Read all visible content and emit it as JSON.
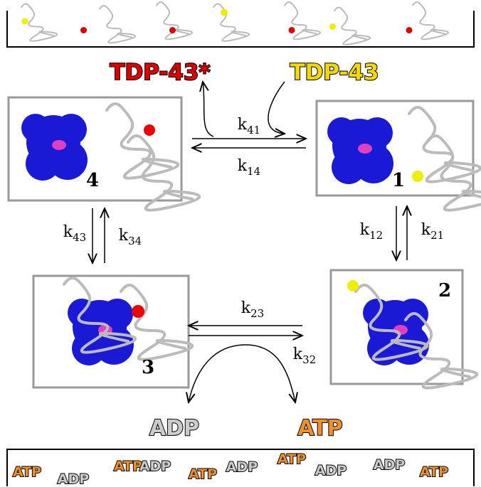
{
  "labels": {
    "tdp_mutant": "TDP-43*",
    "tdp_wild": "TDP-43",
    "adp": "ADP",
    "atp": "ATP"
  },
  "states": [
    "4",
    "1",
    "2",
    "3"
  ],
  "rates": {
    "k41": {
      "symbol": "k",
      "subscript": "41"
    },
    "k14": {
      "symbol": "k",
      "subscript": "14"
    },
    "k43": {
      "symbol": "k",
      "subscript": "43"
    },
    "k34": {
      "symbol": "k",
      "subscript": "34"
    },
    "k12": {
      "symbol": "k",
      "subscript": "12"
    },
    "k21": {
      "symbol": "k",
      "subscript": "21"
    },
    "k23": {
      "symbol": "k",
      "subscript": "23"
    },
    "k32": {
      "symbol": "k",
      "subscript": "32"
    }
  },
  "pool": [
    "ATP",
    "ADP",
    "ATP",
    "ADP",
    "ATP",
    "ADP",
    "ATP",
    "ADP",
    "ADP",
    "ATP"
  ]
}
